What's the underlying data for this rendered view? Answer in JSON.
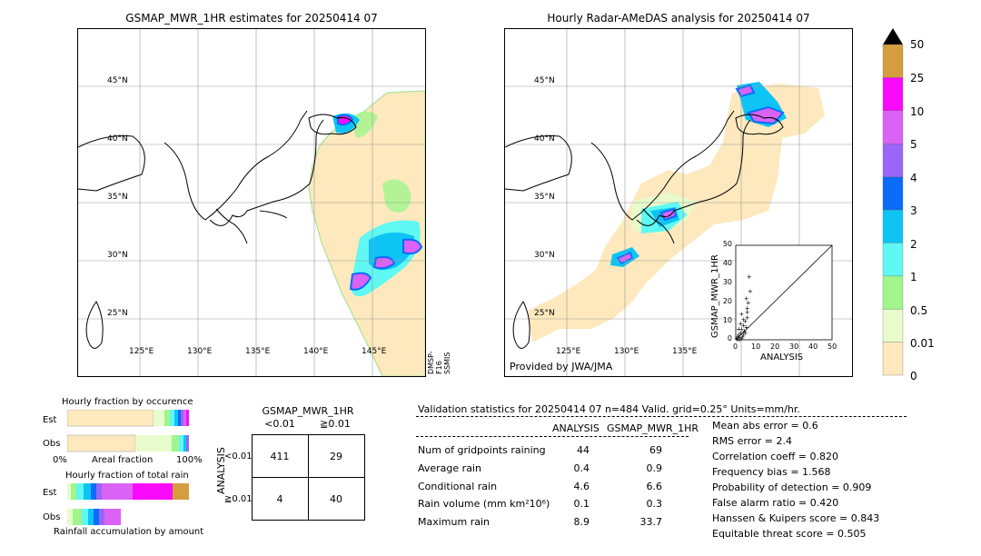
{
  "left_map": {
    "title": "GSMAP_MWR_1HR estimates for 20250414 07",
    "lat_labels": [
      "45°N",
      "40°N",
      "35°N",
      "30°N",
      "25°N"
    ],
    "lon_labels": [
      "125°E",
      "130°E",
      "135°E",
      "140°E",
      "145°E"
    ],
    "satellite_label": "DMSP-F16 SSMIS"
  },
  "right_map": {
    "title": "Hourly Radar-AMeDAS analysis for 20250414 07",
    "lat_labels": [
      "45°N",
      "40°N",
      "35°N",
      "30°N",
      "25°N"
    ],
    "lon_labels": [
      "125°E",
      "130°E",
      "135°E"
    ],
    "credit": "Provided by JWA/JMA"
  },
  "colorbar": {
    "levels": [
      "0",
      "0.01",
      "0.5",
      "1",
      "2",
      "3",
      "4",
      "5",
      "10",
      "25",
      "50"
    ],
    "colors": [
      "#fde9bd",
      "#e8fbcc",
      "#a0f58c",
      "#5ff8f2",
      "#0ec4f5",
      "#0a6cf8",
      "#9966f7",
      "#da62f4",
      "#fa0afa",
      "#d49e3e"
    ]
  },
  "scatter": {
    "xlabel": "ANALYSIS",
    "ylabel": "GSMAP_MWR_1HR",
    "ticks": [
      "0",
      "10",
      "20",
      "30",
      "40",
      "50"
    ]
  },
  "occurrence": {
    "title": "Hourly fraction by occurence",
    "rows": [
      "Est",
      "Obs"
    ],
    "axis_left": "0%",
    "axis_mid": "Areal fraction",
    "axis_right": "100%"
  },
  "total_rain": {
    "title": "Hourly fraction of total rain",
    "rows": [
      "Est",
      "Obs"
    ],
    "footer": "Rainfall accumulation by amount"
  },
  "contingency": {
    "title": "GSMAP_MWR_1HR",
    "col_labels": [
      "<0.01",
      "≧0.01"
    ],
    "row_axis": "ANALYSIS",
    "row_labels": [
      "<0.01",
      "≧0.01"
    ],
    "cells": [
      "411",
      "29",
      "4",
      "40"
    ]
  },
  "validation": {
    "header": "Validation statistics for 20250414 07  n=484 Valid. grid=0.25° Units=mm/hr.",
    "col_analysis": "ANALYSIS",
    "col_gsmap": "GSMAP_MWR_1HR",
    "rows": [
      {
        "label": "Num of gridpoints raining",
        "a": "44",
        "g": "69"
      },
      {
        "label": "Average rain",
        "a": "0.4",
        "g": "0.9"
      },
      {
        "label": "Conditional rain",
        "a": "4.6",
        "g": "6.6"
      },
      {
        "label": "Rain volume (mm km²10⁶)",
        "a": "0.1",
        "g": "0.3"
      },
      {
        "label": "Maximum rain",
        "a": "8.9",
        "g": "33.7"
      }
    ],
    "scores": [
      "Mean abs error =    0.6",
      "RMS error =    2.4",
      "Correlation coeff =  0.820",
      "Frequency bias =  1.568",
      "Probability of detection =  0.909",
      "False alarm ratio =  0.420",
      "Hanssen & Kuipers score =  0.843",
      "Equitable threat score =  0.505"
    ]
  },
  "chart_data": [
    {
      "type": "scatter",
      "title": "",
      "xlabel": "ANALYSIS",
      "ylabel": "GSMAP_MWR_1HR",
      "xlim": [
        0,
        50
      ],
      "ylim": [
        0,
        50
      ],
      "x": [
        0.5,
        1,
        1.5,
        2,
        2.5,
        3,
        3.5,
        4,
        4.5,
        5,
        5.5,
        6,
        6.5,
        7,
        1,
        2,
        3,
        4,
        5,
        6,
        2.5,
        4,
        5.5,
        7.5,
        1.5,
        3,
        6
      ],
      "y": [
        1,
        2,
        3,
        1.5,
        4,
        6,
        2,
        8,
        5,
        10,
        7,
        15,
        20,
        33.7,
        0.5,
        0.3,
        1,
        3,
        4,
        12,
        9,
        11,
        22,
        26,
        6,
        14,
        17
      ]
    }
  ]
}
